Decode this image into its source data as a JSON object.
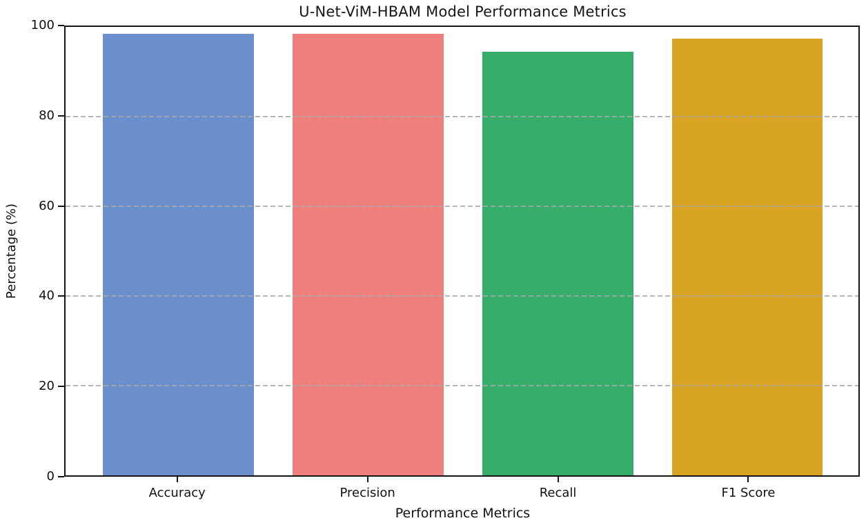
{
  "chart_data": {
    "type": "bar",
    "title": "U-Net-ViM-HBAM Model Performance Metrics",
    "xlabel": "Performance Metrics",
    "ylabel": "Percentage (%)",
    "categories": [
      "Accuracy",
      "Precision",
      "Recall",
      "F1 Score"
    ],
    "values": [
      98.5,
      98.4,
      94.4,
      97.4
    ],
    "bar_colors": [
      "#6b8ecd",
      "#ee7f7d",
      "#36ad6b",
      "#d9a324"
    ],
    "ylim": [
      0,
      100
    ],
    "yticks": [
      0,
      20,
      40,
      60,
      80,
      100
    ],
    "grid": "horizontal dashed gridlines at 20/40/60/80, drawn over bars",
    "legend": "none"
  },
  "colors": {
    "spine": "#141414",
    "grid": "#a8a8a8",
    "text": "#111111",
    "background": "#ffffff"
  }
}
